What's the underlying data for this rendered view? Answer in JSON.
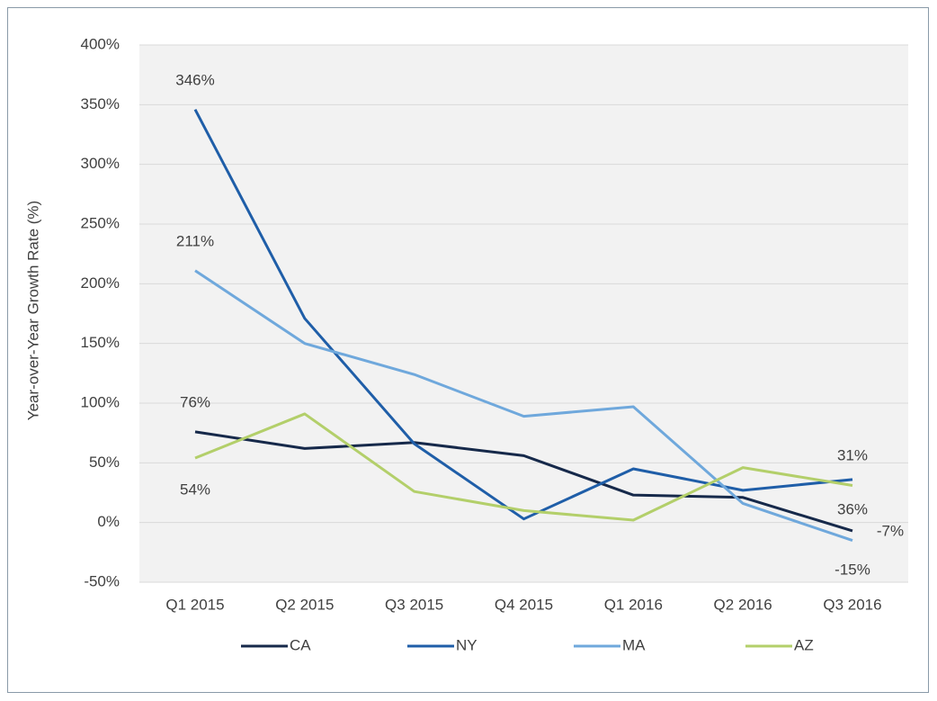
{
  "chart_data": {
    "type": "line",
    "y_label": "Year-over-Year Growth Rate (%)",
    "categories": [
      "Q1 2015",
      "Q2 2015",
      "Q3 2015",
      "Q4 2015",
      "Q1 2016",
      "Q2 2016",
      "Q3 2016"
    ],
    "series": [
      {
        "name": "CA",
        "color": "#16294a",
        "values": [
          76,
          62,
          67,
          56,
          23,
          21,
          -7
        ],
        "value_labels": [
          "76%",
          null,
          null,
          null,
          null,
          null,
          "-7%"
        ]
      },
      {
        "name": "NY",
        "color": "#1f5ea8",
        "values": [
          346,
          171,
          66,
          3,
          45,
          27,
          36
        ],
        "value_labels": [
          "346%",
          null,
          null,
          null,
          null,
          null,
          "36%"
        ]
      },
      {
        "name": "MA",
        "color": "#6fa8dc",
        "values": [
          211,
          150,
          124,
          89,
          97,
          16,
          -15
        ],
        "value_labels": [
          "211%",
          null,
          null,
          null,
          null,
          null,
          "-15%"
        ]
      },
      {
        "name": "AZ",
        "color": "#b3cf6a",
        "values": [
          54,
          91,
          26,
          10,
          2,
          46,
          31
        ],
        "value_labels": [
          "54%",
          null,
          null,
          null,
          null,
          null,
          "31%"
        ]
      }
    ],
    "ylim": [
      -50,
      400
    ],
    "yticks": [
      {
        "value": -50,
        "label": "-50%"
      },
      {
        "value": 0,
        "label": "0%"
      },
      {
        "value": 50,
        "label": "50%"
      },
      {
        "value": 100,
        "label": "100%"
      },
      {
        "value": 150,
        "label": "150%"
      },
      {
        "value": 200,
        "label": "200%"
      },
      {
        "value": 250,
        "label": "250%"
      },
      {
        "value": 300,
        "label": "300%"
      },
      {
        "value": 350,
        "label": "350%"
      },
      {
        "value": 400,
        "label": "400%"
      }
    ],
    "grid": true,
    "legend": "bottom"
  }
}
